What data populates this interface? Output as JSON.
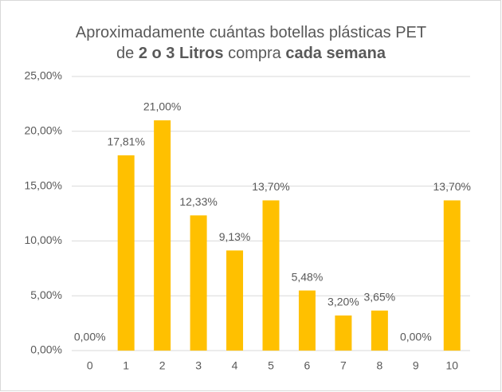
{
  "chart_data": {
    "type": "bar",
    "title_lines": [
      [
        {
          "text": "Aproximadamente cuántas botellas plásticas PET",
          "bold": false
        }
      ],
      [
        {
          "text": "de ",
          "bold": false
        },
        {
          "text": "2 o 3 Litros",
          "bold": true
        },
        {
          "text": " compra ",
          "bold": false
        },
        {
          "text": "cada semana",
          "bold": true
        }
      ]
    ],
    "categories": [
      "0",
      "1",
      "2",
      "3",
      "4",
      "5",
      "6",
      "7",
      "8",
      "9",
      "10"
    ],
    "values": [
      0,
      17.81,
      21,
      12.33,
      9.13,
      13.7,
      5.48,
      3.2,
      3.65,
      0,
      13.7
    ],
    "value_labels": [
      "0,00%",
      "17,81%",
      "21,00%",
      "12,33%",
      "9,13%",
      "13,70%",
      "5,48%",
      "3,20%",
      "3,65%",
      "0,00%",
      "13,70%"
    ],
    "color": "#ffc000",
    "ylim": [
      0,
      25
    ],
    "yticks": [
      {
        "value": 0,
        "label": "0,00%"
      },
      {
        "value": 5,
        "label": "5,00%"
      },
      {
        "value": 10,
        "label": "10,00%"
      },
      {
        "value": 15,
        "label": "15,00%"
      },
      {
        "value": 20,
        "label": "20,00%"
      },
      {
        "value": 25,
        "label": "25,00%"
      }
    ],
    "grid": true
  }
}
